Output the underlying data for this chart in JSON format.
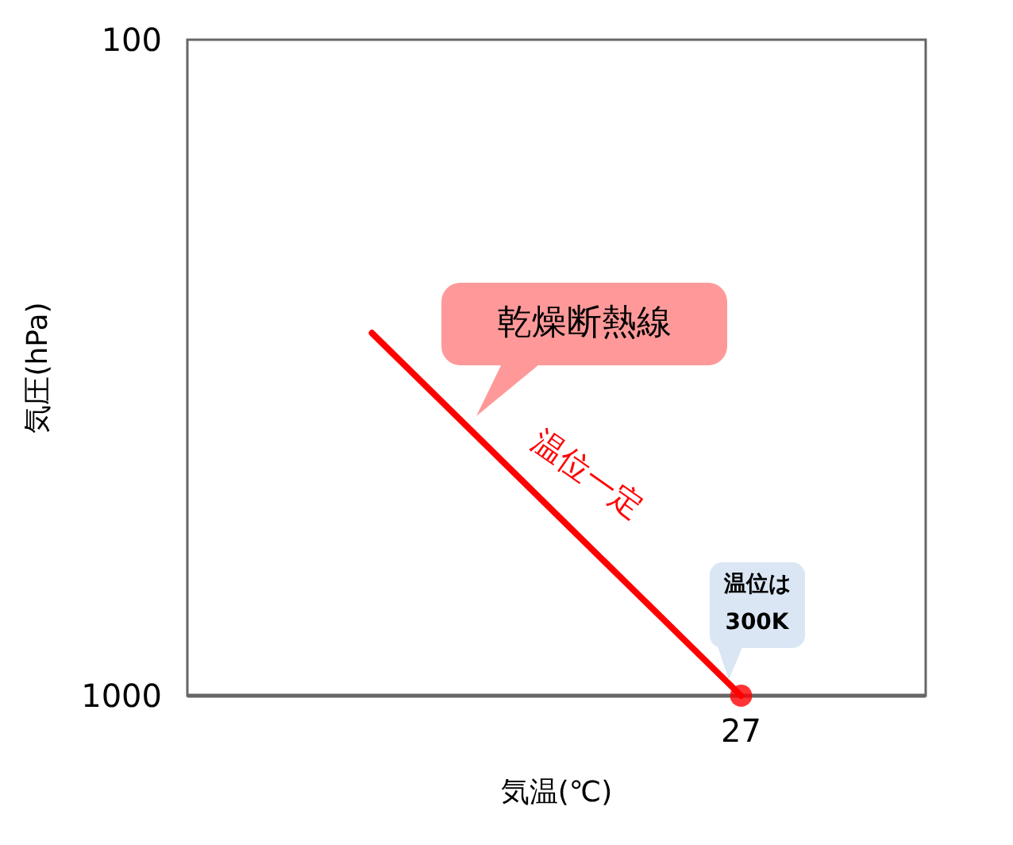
{
  "chart_data": {
    "type": "line",
    "xlabel": "気温(℃)",
    "ylabel": "気圧(hPa)",
    "categories": [
      null,
      "27"
    ],
    "ylim": [
      1000,
      100
    ],
    "yticks": [
      100,
      1000
    ],
    "log": "y",
    "grid": false,
    "series": [
      {
        "type": "line",
        "color": "#ff0000",
        "values": [
          280,
          1000
        ],
        "marker": "none"
      },
      {
        "type": "scatter",
        "color": "#ff0000",
        "x": [
          "27"
        ],
        "values": [
          1000
        ],
        "marker": "circle"
      }
    ],
    "annotations": [
      "乾燥断熱線",
      "温位一定",
      "温位は\n300K"
    ]
  }
}
